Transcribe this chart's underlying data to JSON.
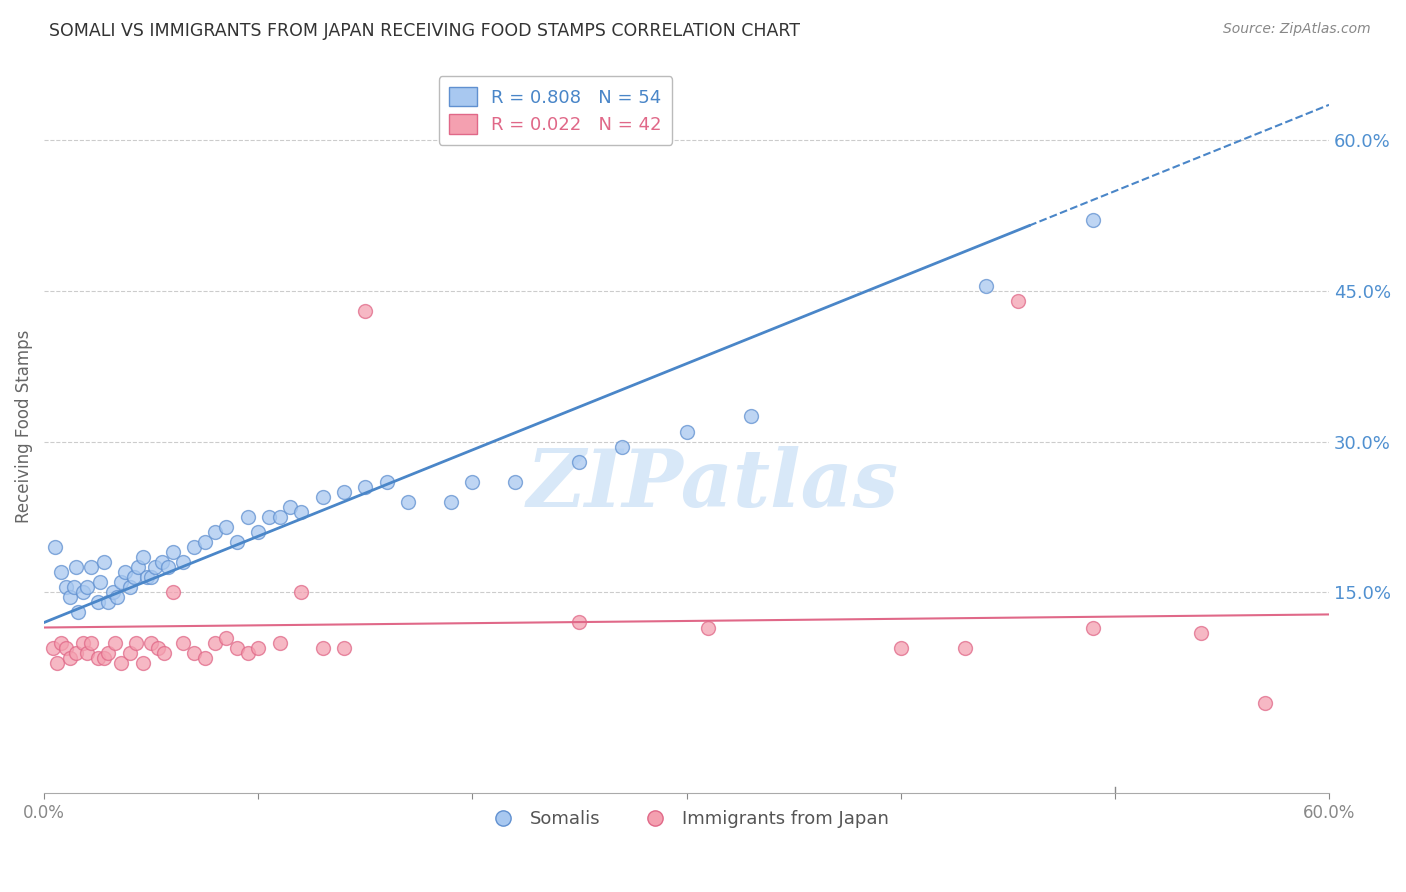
{
  "title": "SOMALI VS IMMIGRANTS FROM JAPAN RECEIVING FOOD STAMPS CORRELATION CHART",
  "source": "Source: ZipAtlas.com",
  "ylabel": "Receiving Food Stamps",
  "right_ytick_labels": [
    "60.0%",
    "45.0%",
    "30.0%",
    "15.0%"
  ],
  "right_ytick_values": [
    0.6,
    0.45,
    0.3,
    0.15
  ],
  "xmin": 0.0,
  "xmax": 0.6,
  "ymin": -0.05,
  "ymax": 0.68,
  "xtick_values": [
    0.0,
    0.1,
    0.2,
    0.3,
    0.4,
    0.5,
    0.6
  ],
  "xtick_labels": [
    "0.0%",
    "",
    "",
    "",
    "",
    "",
    "60.0%"
  ],
  "legend_somali_label": "R = 0.808   N = 54",
  "legend_japan_label": "R = 0.022   N = 42",
  "legend_label1": "Somalis",
  "legend_label2": "Immigrants from Japan",
  "somali_color": "#a8c8f0",
  "japan_color": "#f4a0b0",
  "somali_edge_color": "#6090d0",
  "japan_edge_color": "#e06888",
  "somali_line_color": "#4a86c8",
  "japan_line_color": "#e06888",
  "watermark": "ZIPatlas",
  "watermark_color": "#d8e8f8",
  "title_color": "#333333",
  "right_axis_color": "#5090d0",
  "grid_color": "#cccccc",
  "background_color": "#ffffff",
  "somali_line_y0": 0.12,
  "somali_line_y1": 0.635,
  "japan_line_y0": 0.115,
  "japan_line_y1": 0.128,
  "somali_scatter_x": [
    0.005,
    0.008,
    0.01,
    0.012,
    0.014,
    0.015,
    0.016,
    0.018,
    0.02,
    0.022,
    0.025,
    0.026,
    0.028,
    0.03,
    0.032,
    0.034,
    0.036,
    0.038,
    0.04,
    0.042,
    0.044,
    0.046,
    0.048,
    0.05,
    0.052,
    0.055,
    0.058,
    0.06,
    0.065,
    0.07,
    0.075,
    0.08,
    0.085,
    0.09,
    0.095,
    0.1,
    0.105,
    0.11,
    0.115,
    0.12,
    0.13,
    0.14,
    0.15,
    0.16,
    0.17,
    0.19,
    0.2,
    0.22,
    0.25,
    0.27,
    0.3,
    0.33,
    0.44,
    0.49
  ],
  "somali_scatter_y": [
    0.195,
    0.17,
    0.155,
    0.145,
    0.155,
    0.175,
    0.13,
    0.15,
    0.155,
    0.175,
    0.14,
    0.16,
    0.18,
    0.14,
    0.15,
    0.145,
    0.16,
    0.17,
    0.155,
    0.165,
    0.175,
    0.185,
    0.165,
    0.165,
    0.175,
    0.18,
    0.175,
    0.19,
    0.18,
    0.195,
    0.2,
    0.21,
    0.215,
    0.2,
    0.225,
    0.21,
    0.225,
    0.225,
    0.235,
    0.23,
    0.245,
    0.25,
    0.255,
    0.26,
    0.24,
    0.24,
    0.26,
    0.26,
    0.28,
    0.295,
    0.31,
    0.325,
    0.455,
    0.52
  ],
  "japan_scatter_x": [
    0.004,
    0.006,
    0.008,
    0.01,
    0.012,
    0.015,
    0.018,
    0.02,
    0.022,
    0.025,
    0.028,
    0.03,
    0.033,
    0.036,
    0.04,
    0.043,
    0.046,
    0.05,
    0.053,
    0.056,
    0.06,
    0.065,
    0.07,
    0.075,
    0.08,
    0.085,
    0.09,
    0.095,
    0.1,
    0.11,
    0.12,
    0.13,
    0.14,
    0.15,
    0.25,
    0.31,
    0.4,
    0.43,
    0.455,
    0.49,
    0.54,
    0.57
  ],
  "japan_scatter_y": [
    0.095,
    0.08,
    0.1,
    0.095,
    0.085,
    0.09,
    0.1,
    0.09,
    0.1,
    0.085,
    0.085,
    0.09,
    0.1,
    0.08,
    0.09,
    0.1,
    0.08,
    0.1,
    0.095,
    0.09,
    0.15,
    0.1,
    0.09,
    0.085,
    0.1,
    0.105,
    0.095,
    0.09,
    0.095,
    0.1,
    0.15,
    0.095,
    0.095,
    0.43,
    0.12,
    0.115,
    0.095,
    0.095,
    0.44,
    0.115,
    0.11,
    0.04
  ]
}
